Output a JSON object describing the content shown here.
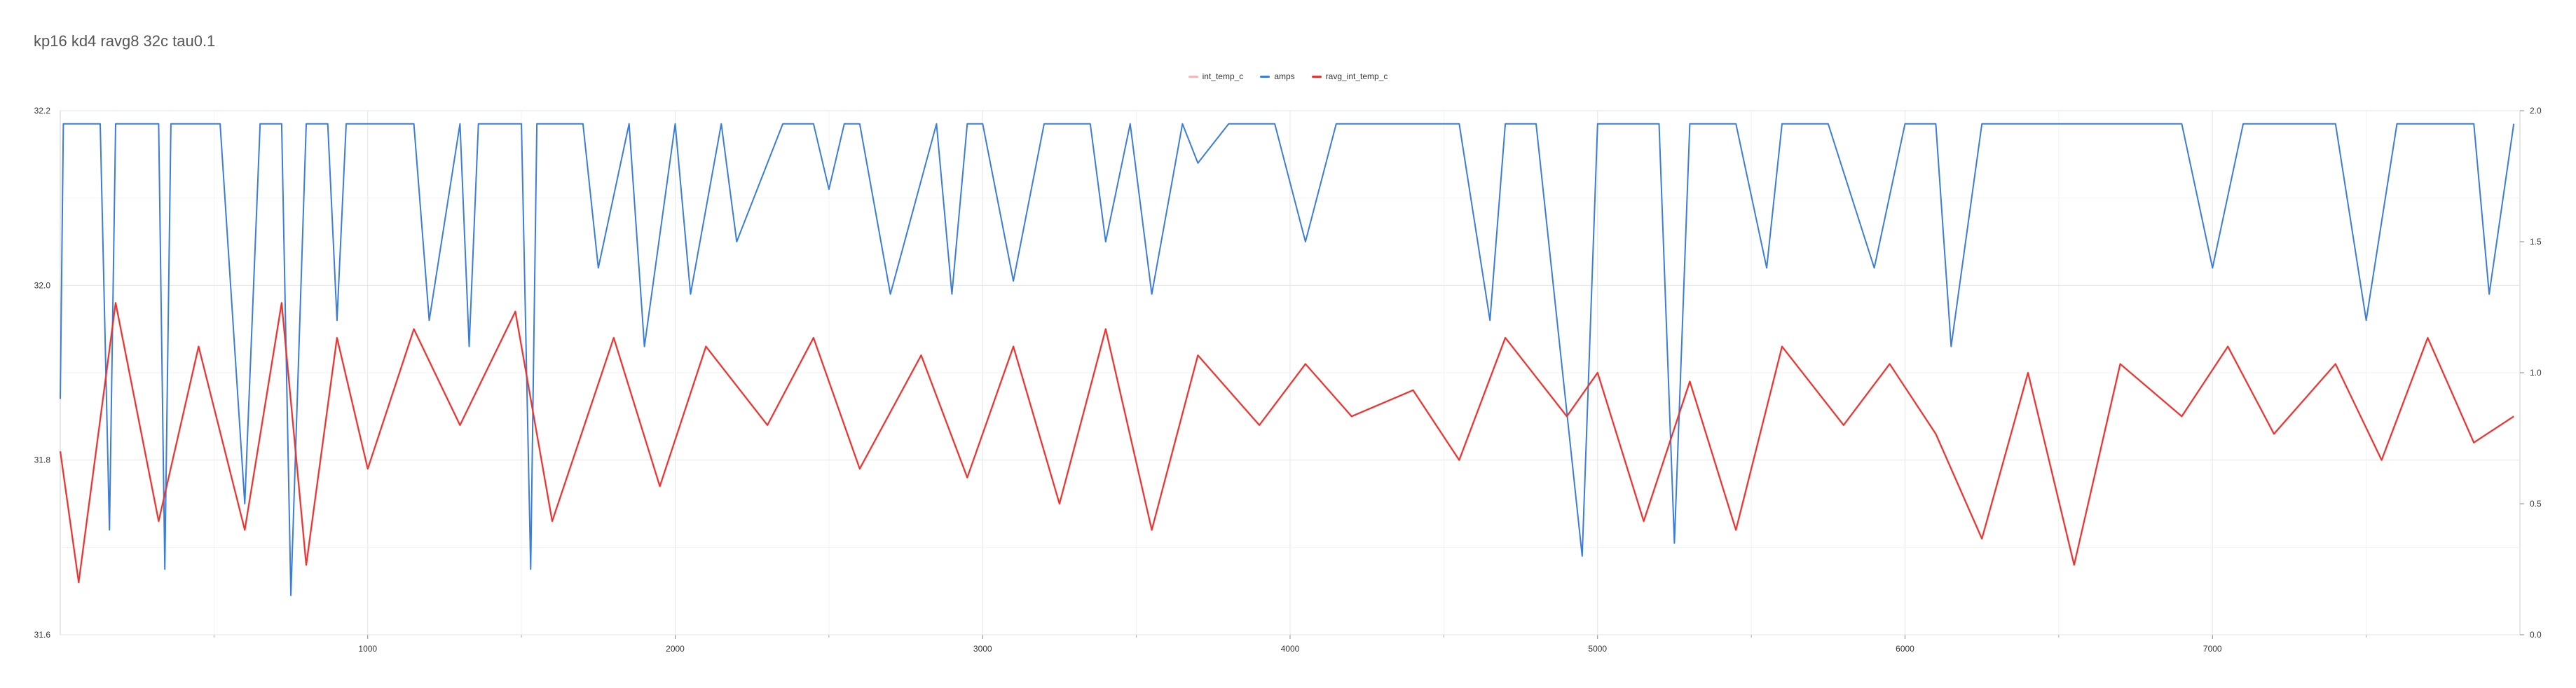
{
  "chart_data": {
    "type": "line",
    "title": "kp16 kd4 ravg8 32c tau0.1",
    "xlabel": "",
    "ylabel": "",
    "xlim": [
      0,
      8000
    ],
    "ylim_left": [
      31.6,
      32.2
    ],
    "ylim_right": [
      0.0,
      2.0
    ],
    "grid": true,
    "legend_position": "top-center",
    "x_ticks": [
      "1000",
      "2000",
      "3000",
      "4000",
      "5000",
      "6000",
      "7000"
    ],
    "y_left_ticks": [
      "31.6",
      "31.8",
      "32.0",
      "32.2"
    ],
    "y_right_ticks": [
      "0.0",
      "0.5",
      "1.0",
      "1.5",
      "2.0"
    ],
    "series": [
      {
        "name": "int_temp_c",
        "axis": "left",
        "color": "#f4b6b6",
        "x": [
          0,
          60,
          180,
          320,
          450,
          600,
          720,
          800,
          900,
          1000,
          1150,
          1300,
          1480,
          1600,
          1800,
          1950,
          2100,
          2300,
          2450,
          2600,
          2800,
          2950,
          3100,
          3250,
          3400,
          3550,
          3700,
          3900,
          4050,
          4200,
          4400,
          4550,
          4700,
          4900,
          5000,
          5150,
          5300,
          5450,
          5600,
          5800,
          5950,
          6100,
          6250,
          6400,
          6550,
          6700,
          6900,
          7050,
          7200,
          7400,
          7550,
          7700,
          7850,
          7980
        ],
        "values": [
          31.81,
          31.66,
          31.98,
          31.73,
          31.93,
          31.72,
          31.98,
          31.68,
          31.94,
          31.79,
          31.95,
          31.84,
          31.97,
          31.73,
          31.94,
          31.77,
          31.93,
          31.84,
          31.94,
          31.79,
          31.92,
          31.78,
          31.93,
          31.75,
          31.95,
          31.72,
          31.92,
          31.84,
          31.91,
          31.85,
          31.88,
          31.8,
          31.94,
          31.85,
          31.9,
          31.73,
          31.89,
          31.72,
          31.93,
          31.84,
          31.91,
          31.83,
          31.71,
          31.9,
          31.68,
          31.91,
          31.85,
          31.93,
          31.83,
          31.91,
          31.8,
          31.94,
          31.82,
          31.85
        ]
      },
      {
        "name": "amps",
        "axis": "right",
        "color": "#3b7dd8",
        "x": [
          0,
          10,
          30,
          130,
          160,
          180,
          320,
          340,
          360,
          450,
          520,
          600,
          650,
          720,
          750,
          800,
          870,
          900,
          930,
          1050,
          1150,
          1200,
          1300,
          1330,
          1360,
          1500,
          1530,
          1550,
          1700,
          1750,
          1850,
          1900,
          2000,
          2050,
          2150,
          2200,
          2350,
          2450,
          2500,
          2550,
          2600,
          2700,
          2850,
          2900,
          2950,
          3000,
          3100,
          3200,
          3350,
          3400,
          3480,
          3550,
          3650,
          3700,
          3800,
          3950,
          4050,
          4150,
          4400,
          4550,
          4650,
          4700,
          4800,
          4950,
          5000,
          5200,
          5250,
          5300,
          5450,
          5550,
          5600,
          5750,
          5900,
          6000,
          6100,
          6150,
          6250,
          6400,
          6550,
          6700,
          6800,
          6900,
          7000,
          7100,
          7300,
          7400,
          7500,
          7600,
          7700,
          7800,
          7850,
          7900,
          7980
        ],
        "values": [
          0.9,
          1.95,
          1.95,
          1.95,
          0.4,
          1.95,
          1.95,
          0.25,
          1.95,
          1.95,
          1.95,
          0.5,
          1.95,
          1.95,
          0.15,
          1.95,
          1.95,
          1.2,
          1.95,
          1.95,
          1.95,
          1.2,
          1.95,
          1.1,
          1.95,
          1.95,
          0.25,
          1.95,
          1.95,
          1.4,
          1.95,
          1.1,
          1.95,
          1.3,
          1.95,
          1.5,
          1.95,
          1.95,
          1.7,
          1.95,
          1.95,
          1.3,
          1.95,
          1.3,
          1.95,
          1.95,
          1.35,
          1.95,
          1.95,
          1.5,
          1.95,
          1.3,
          1.95,
          1.8,
          1.95,
          1.95,
          1.5,
          1.95,
          1.95,
          1.95,
          1.2,
          1.95,
          1.95,
          0.3,
          1.95,
          1.95,
          0.35,
          1.95,
          1.95,
          1.4,
          1.95,
          1.95,
          1.4,
          1.95,
          1.95,
          1.1,
          1.95,
          1.95,
          1.95,
          1.95,
          1.95,
          1.95,
          1.4,
          1.95,
          1.95,
          1.95,
          1.2,
          1.95,
          1.95,
          1.95,
          1.95,
          1.3,
          1.95
        ]
      },
      {
        "name": "ravg_int_temp_c",
        "axis": "left",
        "color": "#e8332f",
        "x": [
          0,
          60,
          180,
          320,
          450,
          600,
          720,
          800,
          900,
          1000,
          1150,
          1300,
          1480,
          1600,
          1800,
          1950,
          2100,
          2300,
          2450,
          2600,
          2800,
          2950,
          3100,
          3250,
          3400,
          3550,
          3700,
          3900,
          4050,
          4200,
          4400,
          4550,
          4700,
          4900,
          5000,
          5150,
          5300,
          5450,
          5600,
          5800,
          5950,
          6100,
          6250,
          6400,
          6550,
          6700,
          6900,
          7050,
          7200,
          7400,
          7550,
          7700,
          7850,
          7980
        ],
        "values": [
          31.81,
          31.66,
          31.98,
          31.73,
          31.93,
          31.72,
          31.98,
          31.68,
          31.94,
          31.79,
          31.95,
          31.84,
          31.97,
          31.73,
          31.94,
          31.77,
          31.93,
          31.84,
          31.94,
          31.79,
          31.92,
          31.78,
          31.93,
          31.75,
          31.95,
          31.72,
          31.92,
          31.84,
          31.91,
          31.85,
          31.88,
          31.8,
          31.94,
          31.85,
          31.9,
          31.73,
          31.89,
          31.72,
          31.93,
          31.84,
          31.91,
          31.83,
          31.71,
          31.9,
          31.68,
          31.91,
          31.85,
          31.93,
          31.83,
          31.91,
          31.8,
          31.94,
          31.82,
          31.85
        ]
      }
    ]
  }
}
